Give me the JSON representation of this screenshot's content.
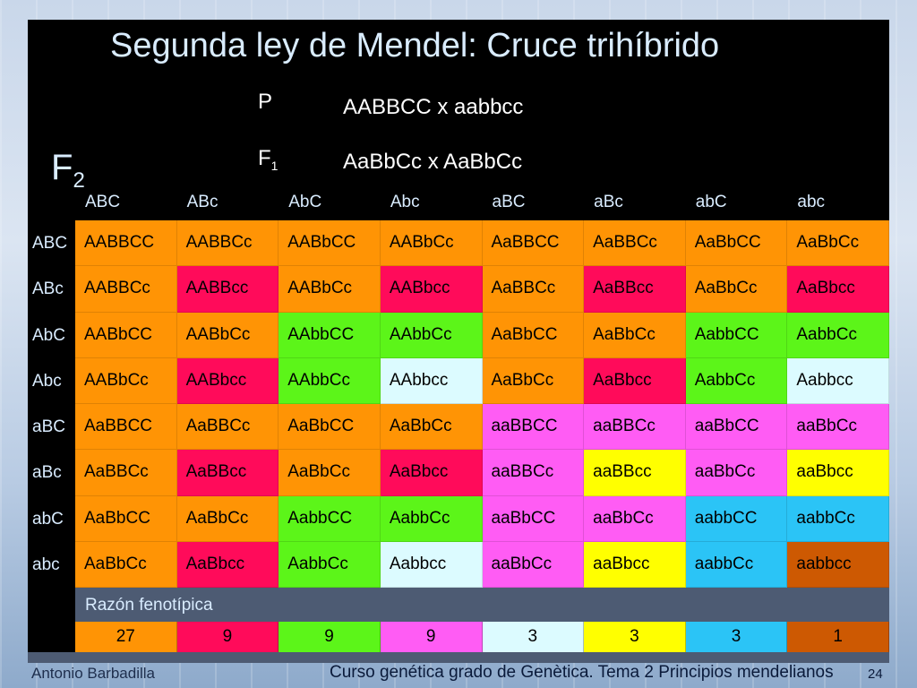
{
  "title": "Segunda ley de Mendel: Cruce trihíbrido",
  "p_label": "P",
  "p_cross": "AABBCC x aabbcc",
  "f1_label": "F",
  "f1_sub": "1",
  "f1_cross": "AaBbCc x AaBbCc",
  "f2_label": "F",
  "f2_sub": "2",
  "gametes": [
    "ABC",
    "ABc",
    "AbC",
    "Abc",
    "aBC",
    "aBc",
    "abC",
    "abc"
  ],
  "rows": [
    [
      "AABBCC",
      "AABBCc",
      "AABbCC",
      "AABbCc",
      "AaBBCC",
      "AaBBCc",
      "AaBbCC",
      "AaBbCc"
    ],
    [
      "AABBCc",
      "AABBcc",
      "AABbCc",
      "AABbcc",
      "AaBBCc",
      "AaBBcc",
      "AaBbCc",
      "AaBbcc"
    ],
    [
      "AABbCC",
      "AABbCc",
      "AAbbCC",
      "AAbbCc",
      "AaBbCC",
      "AaBbCc",
      "AabbCC",
      "AabbCc"
    ],
    [
      "AABbCc",
      "AABbcc",
      "AAbbCc",
      "AAbbcc",
      "AaBbCc",
      "AaBbcc",
      "AabbCc",
      "Aabbcc"
    ],
    [
      "AaBBCC",
      "AaBBCc",
      "AaBbCC",
      "AaBbCc",
      "aaBBCC",
      "aaBBCc",
      "aaBbCC",
      "aaBbCc"
    ],
    [
      "AaBBCc",
      "AaBBcc",
      "AaBbCc",
      "AaBbcc",
      "aaBBCc",
      "aaBBcc",
      "aaBbCc",
      "aaBbcc"
    ],
    [
      "AaBbCC",
      "AaBbCc",
      "AabbCC",
      "AabbCc",
      "aaBbCC",
      "aaBbCc",
      "aabbCC",
      "aabbCc"
    ],
    [
      "AaBbCc",
      "AaBbcc",
      "AabbCc",
      "Aabbcc",
      "aaBbCc",
      "aaBbcc",
      "aabbCc",
      "aabbcc"
    ]
  ],
  "cell_colors": [
    [
      "or",
      "or",
      "or",
      "or",
      "or",
      "or",
      "or",
      "or"
    ],
    [
      "or",
      "re",
      "or",
      "re",
      "or",
      "re",
      "or",
      "re"
    ],
    [
      "or",
      "or",
      "gr",
      "gr",
      "or",
      "or",
      "gr",
      "gr"
    ],
    [
      "or",
      "re",
      "gr",
      "lc",
      "or",
      "re",
      "gr",
      "lc"
    ],
    [
      "or",
      "or",
      "or",
      "or",
      "pi",
      "pi",
      "pi",
      "pi"
    ],
    [
      "or",
      "re",
      "or",
      "re",
      "pi",
      "ye",
      "pi",
      "ye"
    ],
    [
      "or",
      "or",
      "gr",
      "gr",
      "pi",
      "pi",
      "cy",
      "cy"
    ],
    [
      "or",
      "re",
      "gr",
      "lc",
      "pi",
      "ye",
      "cy",
      "br"
    ]
  ],
  "palette": {
    "or": "#ff9405",
    "re": "#ff0b5a",
    "gr": "#5cf519",
    "lc": "#dcfbff",
    "pi": "#ff5cf4",
    "ye": "#ffff00",
    "cy": "#2bc4f6",
    "br": "#cd5902"
  },
  "razon_label": "Razón fenotípica",
  "ratio": [
    {
      "value": "27",
      "color": "or"
    },
    {
      "value": "9",
      "color": "re"
    },
    {
      "value": "9",
      "color": "gr"
    },
    {
      "value": "9",
      "color": "pi"
    },
    {
      "value": "3",
      "color": "lc"
    },
    {
      "value": "3",
      "color": "ye"
    },
    {
      "value": "3",
      "color": "cy"
    },
    {
      "value": "1",
      "color": "br"
    }
  ],
  "footer": {
    "author": "Antonio Barbadilla",
    "course": "Curso genética grado de Genètica. Tema 2 Principios mendelianos",
    "page": "24"
  }
}
